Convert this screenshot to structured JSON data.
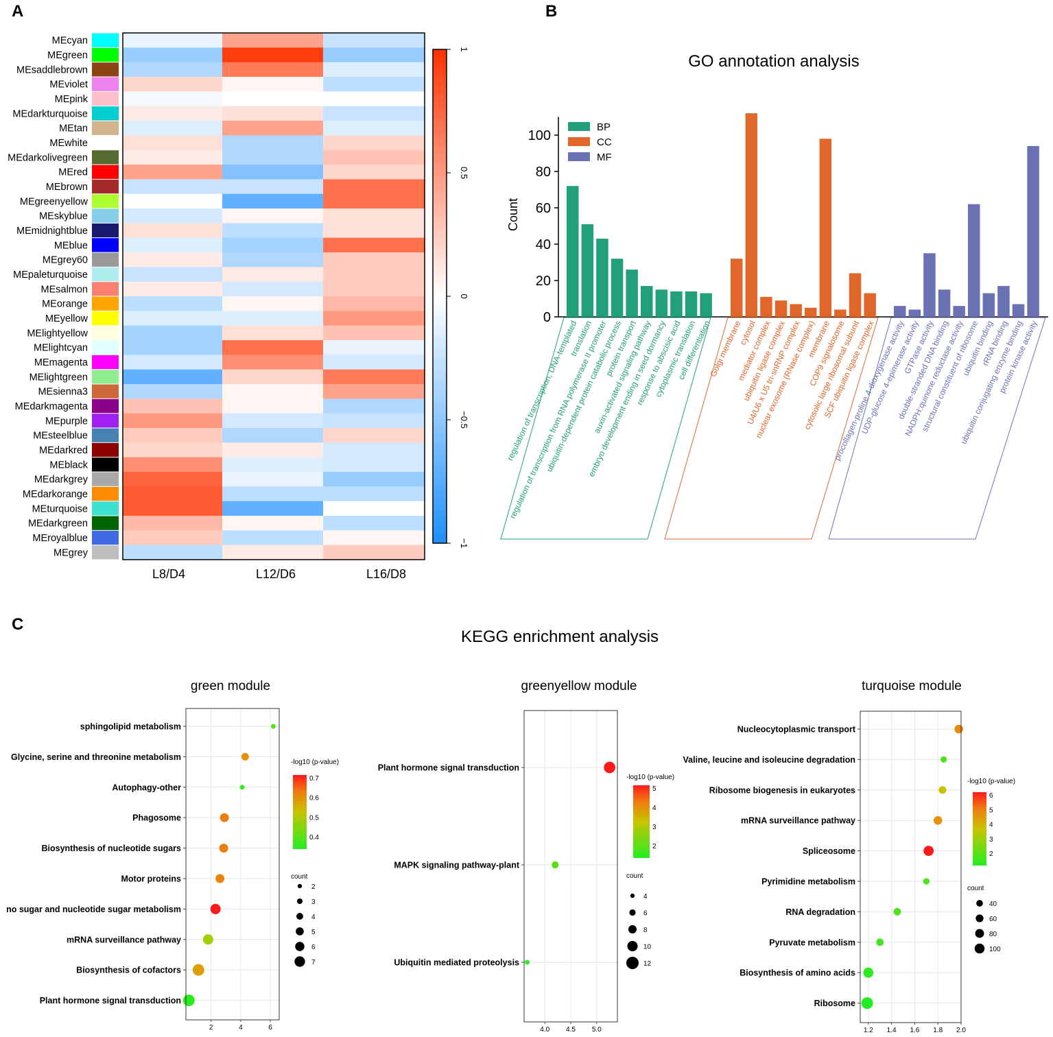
{
  "panels": {
    "a": "A",
    "b": "B",
    "c": "C"
  },
  "chart_data": [
    {
      "type": "heatmap",
      "panel": "A",
      "columns": [
        "L8/D4",
        "L12/D6",
        "L16/D8"
      ],
      "colorbar": {
        "min": -1,
        "max": 1,
        "ticks": [
          "1",
          "0.5",
          "0",
          "−0.5",
          "−1"
        ],
        "low_color": "#1E90FF",
        "mid_color": "#FFFFFF",
        "high_color": "#FF3300"
      },
      "modules": [
        {
          "name": "MEcyan",
          "color": "#00FFFF",
          "values": [
            -0.1,
            0.45,
            -0.25
          ]
        },
        {
          "name": "MEgreen",
          "color": "#00FF00",
          "values": [
            -0.45,
            0.95,
            -0.45
          ]
        },
        {
          "name": "MEsaddlebrown",
          "color": "#8B4513",
          "values": [
            -0.35,
            0.65,
            -0.15
          ]
        },
        {
          "name": "MEviolet",
          "color": "#EE82EE",
          "values": [
            0.2,
            0.05,
            -0.3
          ]
        },
        {
          "name": "MEpink",
          "color": "#FFC0CB",
          "values": [
            -0.05,
            0.0,
            0.0
          ]
        },
        {
          "name": "MEdarkturquoise",
          "color": "#00CED1",
          "values": [
            0.1,
            0.15,
            -0.25
          ]
        },
        {
          "name": "MEtan",
          "color": "#D2B48C",
          "values": [
            -0.15,
            0.45,
            -0.15
          ]
        },
        {
          "name": "MEwhite",
          "color": "#FFFFFF",
          "values": [
            0.15,
            -0.35,
            0.2
          ]
        },
        {
          "name": "MEdarkolivegreen",
          "color": "#556B2F",
          "values": [
            0.1,
            -0.35,
            0.3
          ]
        },
        {
          "name": "MEred",
          "color": "#FF0000",
          "values": [
            0.45,
            -0.55,
            0.2
          ]
        },
        {
          "name": "MEbrown",
          "color": "#A52A2A",
          "values": [
            -0.25,
            -0.25,
            0.7
          ]
        },
        {
          "name": "MEgreenyellow",
          "color": "#ADFF2F",
          "values": [
            0.0,
            -0.7,
            0.7
          ]
        },
        {
          "name": "MEskyblue",
          "color": "#87CEEB",
          "values": [
            -0.2,
            0.05,
            0.15
          ]
        },
        {
          "name": "MEmidnightblue",
          "color": "#191970",
          "values": [
            0.15,
            -0.3,
            0.15
          ]
        },
        {
          "name": "MEblue",
          "color": "#0000FF",
          "values": [
            -0.15,
            -0.4,
            0.7
          ]
        },
        {
          "name": "MEgrey60",
          "color": "#999999",
          "values": [
            0.1,
            -0.35,
            0.25
          ]
        },
        {
          "name": "MEpaleturquoise",
          "color": "#AFEEEE",
          "values": [
            -0.25,
            0.1,
            0.25
          ]
        },
        {
          "name": "MEsalmon",
          "color": "#FA8072",
          "values": [
            0.1,
            -0.2,
            0.25
          ]
        },
        {
          "name": "MEorange",
          "color": "#FFA500",
          "values": [
            -0.3,
            0.05,
            0.35
          ]
        },
        {
          "name": "MEyellow",
          "color": "#FFFF00",
          "values": [
            -0.15,
            -0.15,
            0.5
          ]
        },
        {
          "name": "MElightyellow",
          "color": "#FFFFE0",
          "values": [
            -0.4,
            0.15,
            0.3
          ]
        },
        {
          "name": "MElightcyan",
          "color": "#E0FFFF",
          "values": [
            -0.4,
            0.7,
            -0.1
          ]
        },
        {
          "name": "MEmagenta",
          "color": "#FF00FF",
          "values": [
            -0.2,
            0.55,
            -0.2
          ]
        },
        {
          "name": "MElightgreen",
          "color": "#90EE90",
          "values": [
            -0.7,
            0.2,
            0.65
          ]
        },
        {
          "name": "MEsienna3",
          "color": "#CD6839",
          "values": [
            -0.35,
            0.05,
            0.45
          ]
        },
        {
          "name": "MEdarkmagenta",
          "color": "#8B008B",
          "values": [
            0.3,
            0.05,
            -0.35
          ]
        },
        {
          "name": "MEpurple",
          "color": "#A020F0",
          "values": [
            0.5,
            -0.2,
            -0.25
          ]
        },
        {
          "name": "MEsteelblue",
          "color": "#4682B4",
          "values": [
            0.25,
            -0.35,
            0.2
          ]
        },
        {
          "name": "MEdarkred",
          "color": "#8B0000",
          "values": [
            0.2,
            0.1,
            -0.2
          ]
        },
        {
          "name": "MEblack",
          "color": "#000000",
          "values": [
            0.55,
            -0.15,
            -0.2
          ]
        },
        {
          "name": "MEdarkgrey",
          "color": "#A9A9A9",
          "values": [
            0.75,
            -0.1,
            -0.45
          ]
        },
        {
          "name": "MEdarkorange",
          "color": "#FF8C00",
          "values": [
            0.8,
            -0.3,
            -0.3
          ]
        },
        {
          "name": "MEturquoise",
          "color": "#40E0D0",
          "values": [
            0.8,
            -0.7,
            0.0
          ]
        },
        {
          "name": "MEdarkgreen",
          "color": "#006400",
          "values": [
            0.35,
            0.05,
            -0.3
          ]
        },
        {
          "name": "MEroyalblue",
          "color": "#4169E1",
          "values": [
            0.25,
            -0.3,
            0.05
          ]
        },
        {
          "name": "MEgrey",
          "color": "#BEBEBE",
          "values": [
            -0.3,
            0.1,
            0.25
          ]
        }
      ]
    },
    {
      "type": "bar",
      "panel": "B",
      "title": "GO annotation analysis",
      "ylabel": "Count",
      "ylim": [
        0,
        110
      ],
      "yticks": [
        0,
        20,
        40,
        60,
        80,
        100
      ],
      "legend": [
        {
          "label": "BP",
          "color": "#22A07A"
        },
        {
          "label": "CC",
          "color": "#E0662A"
        },
        {
          "label": "MF",
          "color": "#6B72B4"
        }
      ],
      "groups": [
        {
          "name": "BP",
          "color": "#22A07A",
          "categories": [
            "regulation of transcription, DNA-templated",
            "translation",
            "regulation of transcription from RNA polymerase II promoter",
            "ubiquitin-dependent protein catabolic process",
            "protein transport",
            "auxin-activated signaling pathway",
            "embryo development ending in seed dormancy",
            "response to abscisic acid",
            "cytoplasmic translation",
            "cell differentiation"
          ],
          "values": [
            72,
            51,
            43,
            32,
            26,
            17,
            15,
            14,
            14,
            13
          ]
        },
        {
          "name": "CC",
          "color": "#E0662A",
          "categories": [
            "Golgi membrane",
            "cytosol",
            "mediator complex",
            "ubiquitin ligase complex",
            "U4/U6 x U5 tri-snRNP complex",
            "nuclear exosome (RNase complex)",
            "membrane",
            "COP9 signalosome",
            "cytosolic large ribosomal subunit",
            "SCF ubiquitin ligase complex"
          ],
          "values": [
            32,
            112,
            11,
            9,
            7,
            5,
            98,
            4,
            24,
            13
          ]
        },
        {
          "name": "MF",
          "color": "#6B72B4",
          "categories": [
            "procollagen-proline 4-dioxygenase activity",
            "UDP-glucose 4-epimerase activity",
            "GTPase activity",
            "double-stranded DNA binding",
            "NADPH:quinone reductase activity",
            "structural constituent of ribosome",
            "ubiquitin binding",
            "rRNA binding",
            "ubiquitin conjugating enzyme binding",
            "protein kinase activity"
          ],
          "values": [
            6,
            4,
            35,
            15,
            6,
            62,
            13,
            17,
            7,
            94
          ]
        }
      ]
    },
    {
      "type": "scatter",
      "panel": "C",
      "title": "KEGG enrichment analysis",
      "plots": [
        {
          "title": "green module",
          "xlim": [
            0.3,
            6.6
          ],
          "xticks": [
            2,
            4,
            6
          ],
          "color_label": "-log10 (p-value)",
          "color_range": [
            0.33,
            0.72
          ],
          "color_ticks": [
            "0.7",
            "0.6",
            "0.5",
            "0.4"
          ],
          "size_label": "count",
          "size_ticks": [
            2,
            3,
            4,
            5,
            6,
            7
          ],
          "size_range": [
            2,
            7
          ],
          "points": [
            {
              "pathway": "sphingolipid metabolism",
              "x": 6.2,
              "count": 2,
              "color_value": 0.38
            },
            {
              "pathway": "Glycine, serine and threonine metabolism",
              "x": 4.3,
              "count": 4,
              "color_value": 0.6
            },
            {
              "pathway": "Autophagy-other",
              "x": 4.1,
              "count": 2,
              "color_value": 0.36
            },
            {
              "pathway": "Phagosome",
              "x": 2.9,
              "count": 5,
              "color_value": 0.63
            },
            {
              "pathway": "Biosynthesis of nucleotide sugars",
              "x": 2.85,
              "count": 5,
              "color_value": 0.63
            },
            {
              "pathway": "Motor proteins",
              "x": 2.6,
              "count": 5,
              "color_value": 0.62
            },
            {
              "pathway": "no sugar and nucleotide sugar metabolism",
              "x": 2.3,
              "count": 6,
              "color_value": 0.72
            },
            {
              "pathway": "mRNA surveillance pathway",
              "x": 1.8,
              "count": 6,
              "color_value": 0.48
            },
            {
              "pathway": "Biosynthesis of cofactors",
              "x": 1.15,
              "count": 7,
              "color_value": 0.58
            },
            {
              "pathway": "Plant hormone signal transduction",
              "x": 0.5,
              "count": 7,
              "color_value": 0.34
            }
          ]
        },
        {
          "title": "greenyellow module",
          "xlim": [
            3.6,
            5.4
          ],
          "xticks": [
            4.0,
            4.5,
            5.0
          ],
          "xtick_labels": [
            "4.0",
            "4.5",
            "5.0"
          ],
          "color_label": "-log10 (p-value)",
          "color_range": [
            1.2,
            5.0
          ],
          "color_ticks": [
            "5",
            "4",
            "3",
            "2"
          ],
          "size_label": "count",
          "size_ticks": [
            4,
            6,
            8,
            10,
            12
          ],
          "size_range": [
            4,
            12
          ],
          "points": [
            {
              "pathway": "Plant hormone signal transduction",
              "x": 5.25,
              "count": 10,
              "color_value": 5.0
            },
            {
              "pathway": "MAPK signaling pathway-plant",
              "x": 4.2,
              "count": 6,
              "color_value": 1.8
            },
            {
              "pathway": "Ubiquitin mediated proteolysis",
              "x": 3.66,
              "count": 4,
              "color_value": 1.3
            }
          ]
        },
        {
          "title": "turquoise module",
          "xlim": [
            1.13,
            2.0
          ],
          "xticks": [
            1.2,
            1.4,
            1.6,
            1.8,
            2.0
          ],
          "xtick_labels": [
            "1.2",
            "1.4",
            "1.6",
            "1.8",
            "2.0"
          ],
          "color_label": "-log10 (p-value)",
          "color_range": [
            1.0,
            6.8
          ],
          "color_ticks": [
            "6",
            "5",
            "4",
            "3",
            "2"
          ],
          "size_label": "count",
          "size_ticks": [
            40,
            60,
            80,
            100
          ],
          "size_range": [
            20,
            110
          ],
          "points": [
            {
              "pathway": "Nucleocytoplasmic transport",
              "x": 1.98,
              "count": 60,
              "color_value": 5.2
            },
            {
              "pathway": "Valine, leucine and isoleucine degradation",
              "x": 1.85,
              "count": 22,
              "color_value": 1.8
            },
            {
              "pathway": "Ribosome biogenesis in eukaryotes",
              "x": 1.84,
              "count": 45,
              "color_value": 3.8
            },
            {
              "pathway": "mRNA surveillance pathway",
              "x": 1.8,
              "count": 60,
              "color_value": 5.0
            },
            {
              "pathway": "Spliceosome",
              "x": 1.72,
              "count": 85,
              "color_value": 6.8
            },
            {
              "pathway": "Pyrimidine metabolism",
              "x": 1.7,
              "count": 24,
              "color_value": 1.7
            },
            {
              "pathway": "RNA degradation",
              "x": 1.45,
              "count": 40,
              "color_value": 1.7
            },
            {
              "pathway": "Pyruvate metabolism",
              "x": 1.3,
              "count": 40,
              "color_value": 1.5
            },
            {
              "pathway": "Biosynthesis of amino acids",
              "x": 1.2,
              "count": 85,
              "color_value": 1.2
            },
            {
              "pathway": "Ribosome",
              "x": 1.19,
              "count": 110,
              "color_value": 1.0
            }
          ]
        }
      ]
    }
  ]
}
